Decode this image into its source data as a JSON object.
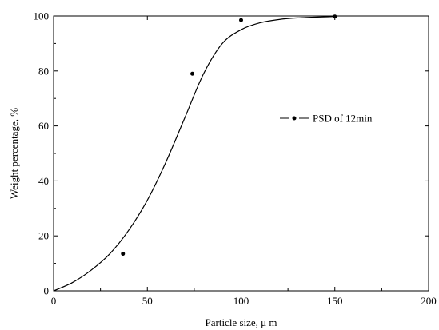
{
  "chart_data": {
    "type": "scatter",
    "xlabel": "Particle size,   μ m",
    "ylabel": "Weight percentage, %",
    "xlim": [
      0,
      200
    ],
    "ylim": [
      0,
      100
    ],
    "x_ticks": [
      "0",
      "50",
      "100",
      "150",
      "200"
    ],
    "y_ticks": [
      "0",
      "20",
      "40",
      "60",
      "80",
      "100"
    ],
    "grid": false,
    "legend_position": "right-middle",
    "series": [
      {
        "name": "PSD of 12min",
        "points": [
          {
            "x": 37,
            "y": 13.5
          },
          {
            "x": 74,
            "y": 79
          },
          {
            "x": 100,
            "y": 98.5
          },
          {
            "x": 150,
            "y": 99.8
          }
        ],
        "fit_curve": [
          {
            "x": 0,
            "y": 0
          },
          {
            "x": 10,
            "y": 3
          },
          {
            "x": 20,
            "y": 7.5
          },
          {
            "x": 30,
            "y": 13.5
          },
          {
            "x": 40,
            "y": 22
          },
          {
            "x": 50,
            "y": 33
          },
          {
            "x": 60,
            "y": 47
          },
          {
            "x": 70,
            "y": 63
          },
          {
            "x": 80,
            "y": 79
          },
          {
            "x": 90,
            "y": 90
          },
          {
            "x": 100,
            "y": 95
          },
          {
            "x": 110,
            "y": 97.5
          },
          {
            "x": 120,
            "y": 98.7
          },
          {
            "x": 130,
            "y": 99.3
          },
          {
            "x": 150,
            "y": 99.8
          }
        ]
      }
    ]
  }
}
